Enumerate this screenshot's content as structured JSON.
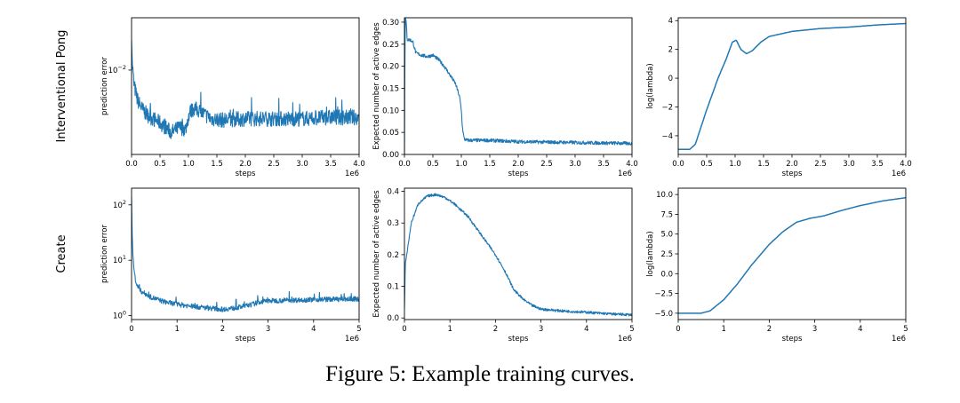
{
  "figure": {
    "caption": "Figure 5: Example training curves.",
    "row_labels": [
      "Interventional Pong",
      "Create"
    ]
  },
  "chart_data": [
    {
      "type": "line",
      "row": "Interventional Pong",
      "yscale": "log",
      "xlabel": "steps",
      "ylabel": "prediction error",
      "x_exponent": "1e6",
      "xlim": [
        0,
        4.0
      ],
      "ylim": [
        0.0017,
        0.03
      ],
      "xticks": [
        "0.0",
        "0.5",
        "1.0",
        "1.5",
        "2.0",
        "2.5",
        "3.0",
        "3.5",
        "4.0"
      ],
      "yticks": [
        {
          "value": 0.01,
          "label": "10^-2"
        }
      ],
      "color": "#1f77b4",
      "noise": 0.07,
      "spikes": true,
      "series": [
        {
          "name": "prediction error",
          "x": [
            0,
            0.01,
            0.04,
            0.1,
            0.2,
            0.3,
            0.5,
            0.7,
            0.85,
            0.95,
            1.02,
            1.1,
            1.2,
            1.4,
            1.6,
            2.0,
            2.5,
            3.0,
            3.5,
            4.0
          ],
          "y": [
            0.022,
            0.012,
            0.0075,
            0.0054,
            0.0043,
            0.0038,
            0.0033,
            0.0027,
            0.003,
            0.0029,
            0.0041,
            0.0045,
            0.0042,
            0.0036,
            0.0035,
            0.0036,
            0.0036,
            0.0036,
            0.0037,
            0.0037
          ]
        }
      ]
    },
    {
      "type": "line",
      "row": "Interventional Pong",
      "yscale": "linear",
      "xlabel": "steps",
      "ylabel": "Expected number of active edges",
      "x_exponent": "1e6",
      "xlim": [
        0,
        4.0
      ],
      "ylim": [
        0.0,
        0.31
      ],
      "xticks": [
        "0.0",
        "0.5",
        "1.0",
        "1.5",
        "2.0",
        "2.5",
        "3.0",
        "3.5",
        "4.0"
      ],
      "yticks": [
        {
          "value": 0.0,
          "label": "0.00"
        },
        {
          "value": 0.05,
          "label": "0.05"
        },
        {
          "value": 0.1,
          "label": "0.10"
        },
        {
          "value": 0.15,
          "label": "0.15"
        },
        {
          "value": 0.2,
          "label": "0.20"
        },
        {
          "value": 0.25,
          "label": "0.25"
        },
        {
          "value": 0.3,
          "label": "0.30"
        }
      ],
      "color": "#1f77b4",
      "noise": 0.004,
      "spikes": false,
      "series": [
        {
          "name": "active edges",
          "x": [
            0,
            0.005,
            0.015,
            0.03,
            0.05,
            0.1,
            0.15,
            0.2,
            0.3,
            0.4,
            0.5,
            0.6,
            0.7,
            0.8,
            0.9,
            0.97,
            1.0,
            1.02,
            1.05,
            1.1,
            1.5,
            2.0,
            3.0,
            4.0
          ],
          "y": [
            0.0,
            0.16,
            0.31,
            0.3,
            0.26,
            0.26,
            0.255,
            0.23,
            0.225,
            0.222,
            0.225,
            0.215,
            0.2,
            0.18,
            0.16,
            0.13,
            0.1,
            0.06,
            0.035,
            0.032,
            0.032,
            0.029,
            0.027,
            0.025
          ]
        }
      ]
    },
    {
      "type": "line",
      "row": "Interventional Pong",
      "yscale": "linear",
      "xlabel": "steps",
      "ylabel": "log(lambda)",
      "x_exponent": "1e6",
      "xlim": [
        0,
        4.0
      ],
      "ylim": [
        -5.3,
        4.2
      ],
      "xticks": [
        "0.0",
        "0.5",
        "1.0",
        "1.5",
        "2.0",
        "2.5",
        "3.0",
        "3.5",
        "4.0"
      ],
      "yticks": [
        {
          "value": -4,
          "label": "−4"
        },
        {
          "value": -2,
          "label": "−2"
        },
        {
          "value": 0,
          "label": "0"
        },
        {
          "value": 2,
          "label": "2"
        },
        {
          "value": 4,
          "label": "4"
        }
      ],
      "color": "#1f77b4",
      "noise": 0,
      "spikes": false,
      "series": [
        {
          "name": "log(lambda)",
          "x": [
            0,
            0.2,
            0.3,
            0.5,
            0.7,
            0.85,
            0.95,
            1.02,
            1.1,
            1.2,
            1.3,
            1.45,
            1.6,
            2.0,
            2.5,
            3.0,
            3.5,
            4.0
          ],
          "y": [
            -4.95,
            -4.95,
            -4.6,
            -2.2,
            0.0,
            1.4,
            2.5,
            2.65,
            2.0,
            1.7,
            1.9,
            2.5,
            2.9,
            3.25,
            3.45,
            3.55,
            3.7,
            3.8
          ]
        }
      ]
    },
    {
      "type": "line",
      "row": "Create",
      "yscale": "log",
      "xlabel": "steps",
      "ylabel": "prediction error",
      "x_exponent": "1e6",
      "xlim": [
        0,
        5.0
      ],
      "ylim": [
        0.85,
        200
      ],
      "xticks": [
        "0",
        "1",
        "2",
        "3",
        "4",
        "5"
      ],
      "yticks": [
        {
          "value": 1,
          "label": "10^0"
        },
        {
          "value": 10,
          "label": "10^1"
        },
        {
          "value": 100,
          "label": "10^2"
        }
      ],
      "color": "#1f77b4",
      "noise": 0.045,
      "spikes": true,
      "series": [
        {
          "name": "prediction error",
          "x": [
            0,
            0.01,
            0.03,
            0.06,
            0.1,
            0.2,
            0.4,
            0.7,
            1.0,
            1.5,
            2.0,
            2.3,
            2.6,
            2.8,
            3.0,
            3.5,
            4.0,
            4.5,
            5.0
          ],
          "y": [
            150,
            30,
            12,
            6,
            3.8,
            2.8,
            2.2,
            1.8,
            1.6,
            1.42,
            1.3,
            1.38,
            1.55,
            1.75,
            1.85,
            1.9,
            1.95,
            1.98,
            2.0
          ]
        }
      ]
    },
    {
      "type": "line",
      "row": "Create",
      "yscale": "linear",
      "xlabel": "steps",
      "ylabel": "Expected number of active edges",
      "x_exponent": "1e6",
      "xlim": [
        0,
        5.0
      ],
      "ylim": [
        -0.005,
        0.41
      ],
      "xticks": [
        "0",
        "1",
        "2",
        "3",
        "4",
        "5"
      ],
      "yticks": [
        {
          "value": 0.0,
          "label": "0.0"
        },
        {
          "value": 0.1,
          "label": "0.1"
        },
        {
          "value": 0.2,
          "label": "0.2"
        },
        {
          "value": 0.3,
          "label": "0.3"
        },
        {
          "value": 0.4,
          "label": "0.4"
        }
      ],
      "color": "#1f77b4",
      "noise": 0.004,
      "spikes": false,
      "series": [
        {
          "name": "active edges",
          "x": [
            0,
            0.02,
            0.06,
            0.15,
            0.3,
            0.5,
            0.7,
            0.9,
            1.1,
            1.4,
            1.7,
            2.0,
            2.2,
            2.4,
            2.6,
            2.8,
            3.0,
            3.5,
            4.0,
            4.5,
            5.0
          ],
          "y": [
            0.03,
            0.17,
            0.21,
            0.3,
            0.36,
            0.385,
            0.39,
            0.38,
            0.36,
            0.32,
            0.26,
            0.2,
            0.15,
            0.09,
            0.06,
            0.04,
            0.028,
            0.022,
            0.018,
            0.013,
            0.01
          ]
        }
      ]
    },
    {
      "type": "line",
      "row": "Create",
      "yscale": "linear",
      "xlabel": "steps",
      "ylabel": "log(lambda)",
      "x_exponent": "1e6",
      "xlim": [
        0,
        5.0
      ],
      "ylim": [
        -5.8,
        10.8
      ],
      "xticks": [
        "0",
        "1",
        "2",
        "3",
        "4",
        "5"
      ],
      "yticks": [
        {
          "value": -5,
          "label": "−5.0"
        },
        {
          "value": -2.5,
          "label": "−2.5"
        },
        {
          "value": 0,
          "label": "0.0"
        },
        {
          "value": 2.5,
          "label": "2.5"
        },
        {
          "value": 5,
          "label": "5.0"
        },
        {
          "value": 7.5,
          "label": "7.5"
        },
        {
          "value": 10,
          "label": "10.0"
        }
      ],
      "color": "#1f77b4",
      "noise": 0,
      "spikes": false,
      "series": [
        {
          "name": "log(lambda)",
          "x": [
            0,
            0.5,
            0.7,
            1.0,
            1.3,
            1.6,
            2.0,
            2.3,
            2.6,
            2.9,
            3.2,
            3.6,
            4.0,
            4.5,
            5.0
          ],
          "y": [
            -5.0,
            -5.0,
            -4.7,
            -3.3,
            -1.3,
            1.0,
            3.7,
            5.3,
            6.5,
            7.0,
            7.3,
            8.0,
            8.6,
            9.2,
            9.6
          ]
        }
      ]
    }
  ]
}
